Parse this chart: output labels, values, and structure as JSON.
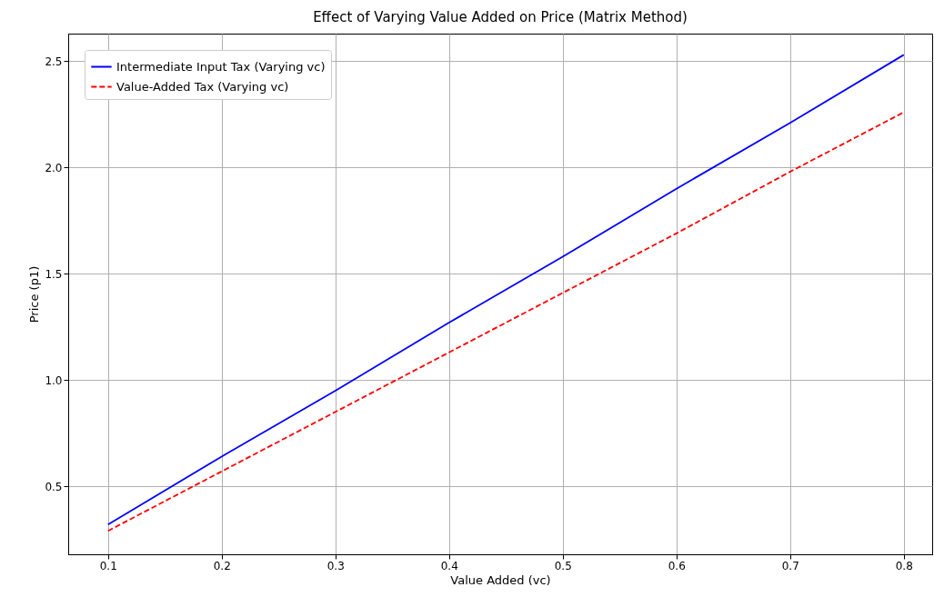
{
  "chart_data": {
    "type": "line",
    "title": "Effect of Varying Value Added on Price (Matrix Method)",
    "xlabel": "Value Added (vc)",
    "ylabel": "Price (p1)",
    "x": [
      0.1,
      0.2,
      0.3,
      0.4,
      0.5,
      0.6,
      0.7,
      0.8
    ],
    "series": [
      {
        "name": "Intermediate Input Tax (Varying vc)",
        "color": "#0000ff",
        "line_style": "solid",
        "values": [
          0.32,
          0.64,
          0.95,
          1.27,
          1.58,
          1.9,
          2.21,
          2.53
        ]
      },
      {
        "name": "Value-Added Tax (Varying vc)",
        "color": "#ff0000",
        "line_style": "dashed",
        "values": [
          0.29,
          0.57,
          0.85,
          1.13,
          1.41,
          1.69,
          1.98,
          2.26
        ]
      }
    ],
    "xlim": [
      0.065,
      0.825
    ],
    "xticks": [
      {
        "value": 0.1,
        "label": "0.1"
      },
      {
        "value": 0.2,
        "label": "0.2"
      },
      {
        "value": 0.3,
        "label": "0.3"
      },
      {
        "value": 0.4,
        "label": "0.4"
      },
      {
        "value": 0.5,
        "label": "0.5"
      },
      {
        "value": 0.6,
        "label": "0.6"
      },
      {
        "value": 0.7,
        "label": "0.7"
      },
      {
        "value": 0.8,
        "label": "0.8"
      }
    ],
    "ylim": [
      0.18,
      2.63
    ],
    "yticks": [
      {
        "value": 0.5,
        "label": "0.5"
      },
      {
        "value": 1,
        "label": "1.0"
      },
      {
        "value": 1.5,
        "label": "1.5"
      },
      {
        "value": 2,
        "label": "2.0"
      },
      {
        "value": 2.5,
        "label": "2.5"
      }
    ],
    "grid": true,
    "legend": "top left",
    "marker": "none"
  }
}
